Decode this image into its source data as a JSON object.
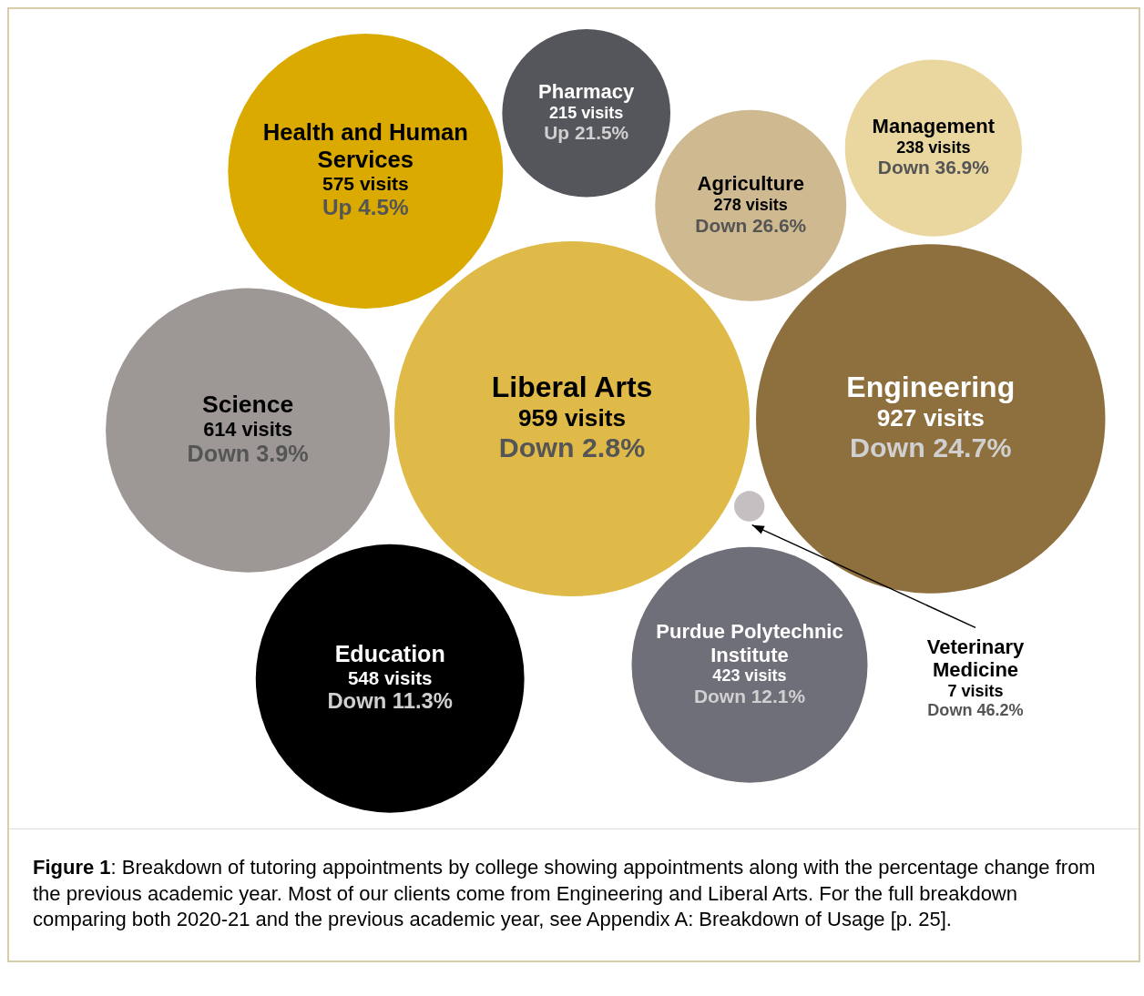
{
  "chart_data": {
    "type": "other",
    "categories": [
      "Liberal Arts",
      "Engineering",
      "Science",
      "Health and Human Services",
      "Education",
      "Purdue Polytechnic Institute",
      "Agriculture",
      "Management",
      "Pharmacy",
      "Veterinary Medicine"
    ],
    "values": [
      959,
      927,
      614,
      575,
      548,
      423,
      278,
      238,
      215,
      7
    ],
    "value_labels": [
      "959 visits",
      "927 visits",
      "614 visits",
      "575 visits",
      "548 visits",
      "423 visits",
      "278 visits",
      "238 visits",
      "215 visits",
      "7 visits"
    ],
    "colors": [
      "#dfba48",
      "#8e6f3e",
      "#9d9795",
      "#daaa00",
      "#000000",
      "#6e6f78",
      "#cfb990",
      "#ead79f",
      "#55565b",
      "#c4bfc0"
    ],
    "annotations": [
      {
        "text": "Down 2.8%",
        "x": "Liberal Arts"
      },
      {
        "text": "Down 24.7%",
        "x": "Engineering"
      },
      {
        "text": "Down 3.9%",
        "x": "Science"
      },
      {
        "text": "Up 4.5%",
        "x": "Health and Human Services"
      },
      {
        "text": "Down 11.3%",
        "x": "Education"
      },
      {
        "text": "Down 12.1%",
        "x": "Purdue Polytechnic Institute"
      },
      {
        "text": "Down 26.6%",
        "x": "Agriculture"
      },
      {
        "text": "Down 36.9%",
        "x": "Management"
      },
      {
        "text": "Up 21.5%",
        "x": "Pharmacy"
      },
      {
        "text": "Down 46.2%",
        "x": "Veterinary Medicine"
      },
      "Figure 1: Breakdown of tutoring appointments by college showing appointments along with the percentage change from the previous academic year. Most of our clients come from Engineering and Liberal Arts. For the full breakdown comparing both 2020-21 and the previous academic year, see Appendix A: Breakdown of Usage [p. 25]."
    ]
  }
}
